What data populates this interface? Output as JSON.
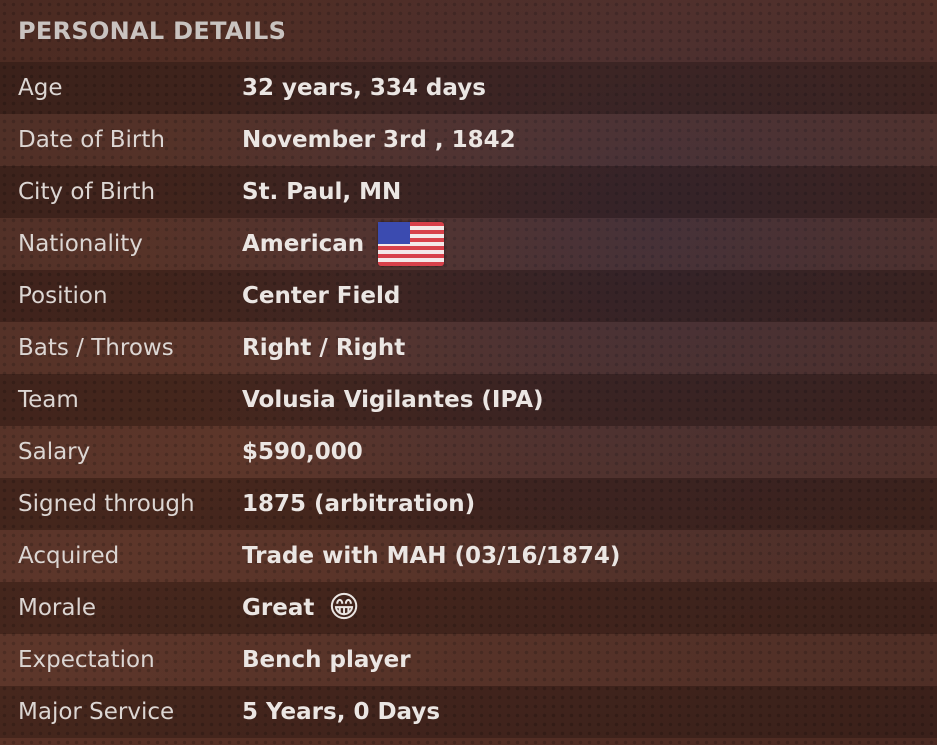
{
  "title": "PERSONAL DETAILS",
  "rows": [
    {
      "label": "Age",
      "value": "32 years, 334 days"
    },
    {
      "label": "Date of Birth",
      "value": "November 3rd , 1842"
    },
    {
      "label": "City of Birth",
      "value": "St. Paul, MN"
    },
    {
      "label": "Nationality",
      "value": "American",
      "icon": "us-flag-icon"
    },
    {
      "label": "Position",
      "value": "Center Field"
    },
    {
      "label": "Bats / Throws",
      "value": "Right / Right"
    },
    {
      "label": "Team",
      "value": "Volusia Vigilantes (IPA)"
    },
    {
      "label": "Salary",
      "value": "$590,000"
    },
    {
      "label": "Signed through",
      "value": "1875 (arbitration)"
    },
    {
      "label": "Acquired",
      "value": "Trade with MAH (03/16/1874)"
    },
    {
      "label": "Morale",
      "value": "Great",
      "icon": "grinning-face-icon"
    },
    {
      "label": "Expectation",
      "value": "Bench player"
    },
    {
      "label": "Major Service",
      "value": "5 Years, 0 Days"
    }
  ]
}
